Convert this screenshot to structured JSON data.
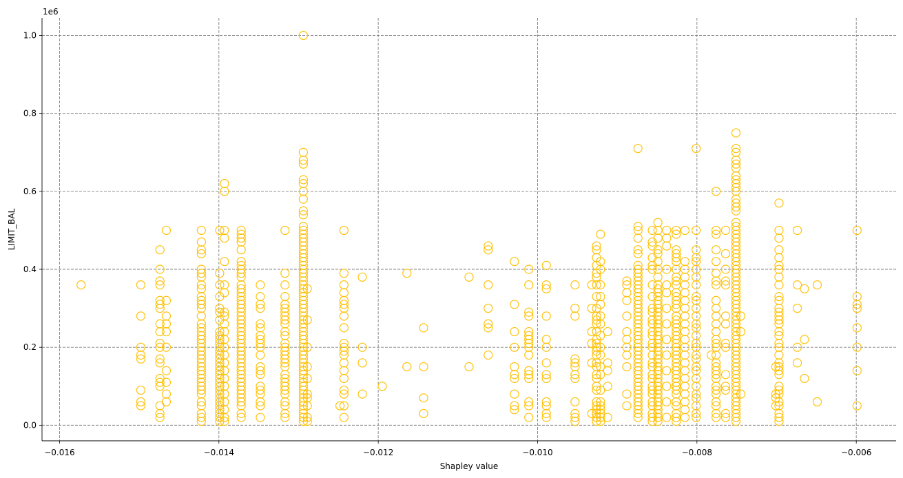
{
  "chart_data": {
    "type": "scatter",
    "title": "",
    "xlabel": "Shapley value",
    "ylabel": "LIMIT_BAL",
    "y_offset_label": "1e6",
    "xlim": [
      -0.01622,
      -0.0055
    ],
    "ylim": [
      -0.04,
      1.045
    ],
    "y_scale_multiplier": 1000000,
    "x_ticks": [
      -0.016,
      -0.014,
      -0.012,
      -0.01,
      -0.008,
      -0.006
    ],
    "x_tick_labels": [
      "−0.016",
      "−0.014",
      "−0.012",
      "−0.010",
      "−0.008",
      "−0.006"
    ],
    "y_ticks": [
      0.0,
      0.2,
      0.4,
      0.6,
      0.8,
      1.0
    ],
    "y_tick_labels": [
      "0.0",
      "0.2",
      "0.4",
      "0.6",
      "0.8",
      "1.0"
    ],
    "grid": true,
    "grid_style": "dashed",
    "marker": "open-circle",
    "marker_color": "#FFC20A",
    "columns": [
      {
        "x": -0.01573,
        "y": [
          0.36
        ]
      },
      {
        "x": -0.01498,
        "y": [
          0.05,
          0.06,
          0.09,
          0.17,
          0.18,
          0.2,
          0.28,
          0.36
        ]
      },
      {
        "x": -0.01474,
        "y": [
          0.02,
          0.03,
          0.05,
          0.1,
          0.11,
          0.12,
          0.16,
          0.17,
          0.2,
          0.21,
          0.24,
          0.26,
          0.3,
          0.31,
          0.32,
          0.36,
          0.37,
          0.4,
          0.45
        ]
      },
      {
        "x": -0.01466,
        "y": [
          0.06,
          0.08,
          0.11,
          0.14,
          0.2,
          0.24,
          0.26,
          0.28,
          0.32,
          0.5
        ]
      },
      {
        "x": -0.01422,
        "y": [
          0.01,
          0.02,
          0.03,
          0.05,
          0.06,
          0.08,
          0.09,
          0.1,
          0.11,
          0.12,
          0.13,
          0.14,
          0.15,
          0.16,
          0.17,
          0.18,
          0.19,
          0.2,
          0.21,
          0.22,
          0.23,
          0.24,
          0.25,
          0.26,
          0.28,
          0.3,
          0.31,
          0.32,
          0.33,
          0.35,
          0.36,
          0.38,
          0.39,
          0.4,
          0.44,
          0.45,
          0.47,
          0.5
        ]
      },
      {
        "x": -0.01399,
        "y": [
          0.01,
          0.02,
          0.03,
          0.04,
          0.05,
          0.06,
          0.07,
          0.08,
          0.09,
          0.1,
          0.11,
          0.12,
          0.13,
          0.14,
          0.15,
          0.16,
          0.17,
          0.18,
          0.19,
          0.2,
          0.21,
          0.22,
          0.23,
          0.24,
          0.27,
          0.29,
          0.3,
          0.33,
          0.36,
          0.39,
          0.5
        ]
      },
      {
        "x": -0.01393,
        "y": [
          0.01,
          0.02,
          0.04,
          0.06,
          0.08,
          0.1,
          0.12,
          0.14,
          0.16,
          0.18,
          0.2,
          0.22,
          0.24,
          0.26,
          0.28,
          0.29,
          0.34,
          0.36,
          0.42,
          0.48,
          0.5,
          0.6,
          0.62
        ]
      },
      {
        "x": -0.01372,
        "y": [
          0.02,
          0.03,
          0.05,
          0.06,
          0.07,
          0.08,
          0.09,
          0.1,
          0.11,
          0.12,
          0.13,
          0.14,
          0.15,
          0.16,
          0.17,
          0.18,
          0.19,
          0.2,
          0.21,
          0.22,
          0.23,
          0.24,
          0.25,
          0.26,
          0.27,
          0.28,
          0.29,
          0.3,
          0.31,
          0.32,
          0.33,
          0.34,
          0.35,
          0.36,
          0.38,
          0.39,
          0.4,
          0.41,
          0.42,
          0.45,
          0.47,
          0.48,
          0.49,
          0.5
        ]
      },
      {
        "x": -0.01348,
        "y": [
          0.02,
          0.05,
          0.06,
          0.08,
          0.09,
          0.1,
          0.13,
          0.14,
          0.15,
          0.18,
          0.2,
          0.21,
          0.22,
          0.23,
          0.25,
          0.26,
          0.3,
          0.31,
          0.33,
          0.36
        ]
      },
      {
        "x": -0.01317,
        "y": [
          0.02,
          0.03,
          0.05,
          0.06,
          0.08,
          0.09,
          0.1,
          0.11,
          0.12,
          0.13,
          0.15,
          0.16,
          0.17,
          0.18,
          0.19,
          0.2,
          0.21,
          0.23,
          0.24,
          0.26,
          0.27,
          0.28,
          0.29,
          0.3,
          0.31,
          0.33,
          0.36,
          0.39,
          0.5
        ]
      },
      {
        "x": -0.01294,
        "y": [
          0.01,
          0.02,
          0.03,
          0.04,
          0.05,
          0.06,
          0.07,
          0.08,
          0.09,
          0.1,
          0.11,
          0.12,
          0.13,
          0.14,
          0.15,
          0.16,
          0.17,
          0.18,
          0.19,
          0.2,
          0.21,
          0.22,
          0.23,
          0.24,
          0.25,
          0.26,
          0.27,
          0.28,
          0.29,
          0.3,
          0.31,
          0.32,
          0.33,
          0.34,
          0.35,
          0.36,
          0.37,
          0.38,
          0.39,
          0.4,
          0.41,
          0.42,
          0.43,
          0.44,
          0.45,
          0.46,
          0.47,
          0.48,
          0.49,
          0.5,
          0.51,
          0.54,
          0.55,
          0.58,
          0.6,
          0.62,
          0.63,
          0.67,
          0.68,
          0.7,
          1.0
        ]
      },
      {
        "x": -0.01289,
        "y": [
          0.01,
          0.02,
          0.05,
          0.07,
          0.08,
          0.12,
          0.15,
          0.2,
          0.27,
          0.35
        ]
      },
      {
        "x": -0.01248,
        "y": [
          0.05
        ]
      },
      {
        "x": -0.01243,
        "y": [
          0.02,
          0.05,
          0.08,
          0.09,
          0.12,
          0.14,
          0.16,
          0.18,
          0.19,
          0.2,
          0.21,
          0.25,
          0.28,
          0.3,
          0.31,
          0.32,
          0.34,
          0.36,
          0.39,
          0.5
        ]
      },
      {
        "x": -0.0122,
        "y": [
          0.08,
          0.16,
          0.2,
          0.38
        ]
      },
      {
        "x": -0.01195,
        "y": [
          0.1
        ]
      },
      {
        "x": -0.01164,
        "y": [
          0.15,
          0.39
        ]
      },
      {
        "x": -0.01143,
        "y": [
          0.03,
          0.07,
          0.15,
          0.25
        ]
      },
      {
        "x": -0.01086,
        "y": [
          0.15,
          0.38
        ]
      },
      {
        "x": -0.01062,
        "y": [
          0.18,
          0.25,
          0.26,
          0.3,
          0.36,
          0.45,
          0.46
        ]
      },
      {
        "x": -0.01029,
        "y": [
          0.04,
          0.05,
          0.08,
          0.12,
          0.13,
          0.15,
          0.2,
          0.24,
          0.31,
          0.42
        ]
      },
      {
        "x": -0.01011,
        "y": [
          0.02,
          0.05,
          0.06,
          0.12,
          0.13,
          0.14,
          0.18,
          0.2,
          0.21,
          0.22,
          0.23,
          0.24,
          0.28,
          0.29,
          0.36,
          0.4
        ]
      },
      {
        "x": -0.00989,
        "y": [
          0.02,
          0.03,
          0.05,
          0.06,
          0.12,
          0.13,
          0.16,
          0.2,
          0.22,
          0.28,
          0.35,
          0.36,
          0.41
        ]
      },
      {
        "x": -0.00953,
        "y": [
          0.01,
          0.02,
          0.03,
          0.06,
          0.12,
          0.13,
          0.15,
          0.16,
          0.17,
          0.28,
          0.3,
          0.36
        ]
      },
      {
        "x": -0.00932,
        "y": [
          0.03,
          0.16,
          0.21,
          0.24,
          0.3,
          0.36
        ]
      },
      {
        "x": -0.00926,
        "y": [
          0.01,
          0.02,
          0.03,
          0.04,
          0.05,
          0.06,
          0.09,
          0.1,
          0.12,
          0.13,
          0.15,
          0.16,
          0.18,
          0.19,
          0.2,
          0.21,
          0.22,
          0.24,
          0.26,
          0.27,
          0.28,
          0.3,
          0.33,
          0.36,
          0.38,
          0.39,
          0.41,
          0.43,
          0.45,
          0.46
        ]
      },
      {
        "x": -0.00921,
        "y": [
          0.01,
          0.02,
          0.03,
          0.04,
          0.05,
          0.06,
          0.09,
          0.13,
          0.15,
          0.18,
          0.2,
          0.23,
          0.26,
          0.28,
          0.31,
          0.33,
          0.36,
          0.4,
          0.42,
          0.49
        ]
      },
      {
        "x": -0.00912,
        "y": [
          0.02,
          0.1,
          0.14,
          0.16,
          0.24
        ]
      },
      {
        "x": -0.00888,
        "y": [
          0.05,
          0.08,
          0.15,
          0.18,
          0.2,
          0.22,
          0.24,
          0.28,
          0.32,
          0.34,
          0.36,
          0.37
        ]
      },
      {
        "x": -0.00874,
        "y": [
          0.02,
          0.03,
          0.04,
          0.05,
          0.06,
          0.07,
          0.08,
          0.09,
          0.1,
          0.11,
          0.12,
          0.13,
          0.14,
          0.15,
          0.16,
          0.17,
          0.18,
          0.19,
          0.2,
          0.21,
          0.22,
          0.23,
          0.24,
          0.25,
          0.26,
          0.27,
          0.28,
          0.29,
          0.3,
          0.31,
          0.32,
          0.33,
          0.34,
          0.35,
          0.36,
          0.37,
          0.38,
          0.39,
          0.4,
          0.41,
          0.44,
          0.45,
          0.48,
          0.5,
          0.51,
          0.71
        ]
      },
      {
        "x": -0.00856,
        "y": [
          0.01,
          0.02,
          0.03,
          0.05,
          0.06,
          0.08,
          0.09,
          0.1,
          0.12,
          0.13,
          0.15,
          0.16,
          0.18,
          0.2,
          0.21,
          0.23,
          0.24,
          0.26,
          0.27,
          0.29,
          0.3,
          0.33,
          0.36,
          0.4,
          0.41,
          0.43,
          0.46,
          0.47,
          0.5
        ]
      },
      {
        "x": -0.00849,
        "y": [
          0.01,
          0.02,
          0.03,
          0.04,
          0.05,
          0.06,
          0.07,
          0.08,
          0.09,
          0.1,
          0.11,
          0.12,
          0.13,
          0.14,
          0.15,
          0.16,
          0.17,
          0.18,
          0.19,
          0.2,
          0.21,
          0.22,
          0.23,
          0.24,
          0.25,
          0.26,
          0.27,
          0.28,
          0.29,
          0.3,
          0.31,
          0.32,
          0.33,
          0.34,
          0.35,
          0.36,
          0.38,
          0.4,
          0.42,
          0.44,
          0.45,
          0.48,
          0.5,
          0.52
        ]
      },
      {
        "x": -0.00838,
        "y": [
          0.02,
          0.06,
          0.1,
          0.14,
          0.18,
          0.22,
          0.26,
          0.3,
          0.34,
          0.36,
          0.4,
          0.46,
          0.48,
          0.5
        ]
      },
      {
        "x": -0.00826,
        "y": [
          0.01,
          0.02,
          0.03,
          0.05,
          0.06,
          0.08,
          0.09,
          0.1,
          0.11,
          0.12,
          0.13,
          0.14,
          0.15,
          0.16,
          0.17,
          0.18,
          0.19,
          0.2,
          0.21,
          0.22,
          0.23,
          0.24,
          0.25,
          0.26,
          0.27,
          0.28,
          0.3,
          0.31,
          0.32,
          0.33,
          0.34,
          0.36,
          0.37,
          0.38,
          0.4,
          0.42,
          0.43,
          0.44,
          0.45,
          0.49,
          0.5
        ]
      },
      {
        "x": -0.00815,
        "y": [
          0.02,
          0.04,
          0.06,
          0.08,
          0.1,
          0.12,
          0.14,
          0.16,
          0.18,
          0.2,
          0.22,
          0.24,
          0.26,
          0.28,
          0.3,
          0.32,
          0.34,
          0.36,
          0.38,
          0.4,
          0.42,
          0.5
        ]
      },
      {
        "x": -0.00801,
        "y": [
          0.02,
          0.03,
          0.05,
          0.07,
          0.08,
          0.1,
          0.12,
          0.14,
          0.15,
          0.17,
          0.18,
          0.2,
          0.21,
          0.23,
          0.25,
          0.26,
          0.28,
          0.3,
          0.32,
          0.33,
          0.36,
          0.38,
          0.4,
          0.42,
          0.43,
          0.45,
          0.5,
          0.71
        ]
      },
      {
        "x": -0.00782,
        "y": [
          0.18
        ]
      },
      {
        "x": -0.00776,
        "y": [
          0.02,
          0.03,
          0.05,
          0.06,
          0.08,
          0.09,
          0.1,
          0.12,
          0.13,
          0.14,
          0.15,
          0.16,
          0.18,
          0.2,
          0.21,
          0.22,
          0.24,
          0.26,
          0.28,
          0.3,
          0.32,
          0.36,
          0.37,
          0.39,
          0.42,
          0.45,
          0.49,
          0.5,
          0.6
        ]
      },
      {
        "x": -0.00764,
        "y": [
          0.02,
          0.03,
          0.09,
          0.1,
          0.13,
          0.2,
          0.21,
          0.26,
          0.28,
          0.36,
          0.37,
          0.4,
          0.44,
          0.5
        ]
      },
      {
        "x": -0.00751,
        "y": [
          0.01,
          0.02,
          0.03,
          0.04,
          0.05,
          0.06,
          0.07,
          0.08,
          0.09,
          0.1,
          0.11,
          0.12,
          0.13,
          0.14,
          0.15,
          0.16,
          0.17,
          0.18,
          0.19,
          0.2,
          0.21,
          0.22,
          0.23,
          0.24,
          0.25,
          0.26,
          0.27,
          0.28,
          0.29,
          0.3,
          0.31,
          0.32,
          0.33,
          0.34,
          0.35,
          0.36,
          0.37,
          0.38,
          0.39,
          0.4,
          0.41,
          0.42,
          0.43,
          0.44,
          0.45,
          0.46,
          0.47,
          0.48,
          0.49,
          0.5,
          0.51,
          0.52,
          0.55,
          0.56,
          0.57,
          0.58,
          0.6,
          0.61,
          0.62,
          0.63,
          0.64,
          0.66,
          0.67,
          0.68,
          0.7,
          0.71,
          0.75
        ]
      },
      {
        "x": -0.00745,
        "y": [
          0.08,
          0.24,
          0.28
        ]
      },
      {
        "x": -0.00701,
        "y": [
          0.05,
          0.07,
          0.08,
          0.15
        ]
      },
      {
        "x": -0.00697,
        "y": [
          0.01,
          0.02,
          0.03,
          0.05,
          0.06,
          0.08,
          0.09,
          0.1,
          0.13,
          0.14,
          0.15,
          0.16,
          0.18,
          0.2,
          0.21,
          0.23,
          0.24,
          0.26,
          0.27,
          0.28,
          0.29,
          0.3,
          0.32,
          0.33,
          0.36,
          0.38,
          0.4,
          0.41,
          0.43,
          0.45,
          0.48,
          0.5,
          0.57
        ]
      },
      {
        "x": -0.00674,
        "y": [
          0.16,
          0.2,
          0.3,
          0.36,
          0.5
        ]
      },
      {
        "x": -0.00665,
        "y": [
          0.12,
          0.22,
          0.35
        ]
      },
      {
        "x": -0.00649,
        "y": [
          0.06,
          0.36
        ]
      },
      {
        "x": -0.00599,
        "y": [
          0.05,
          0.14,
          0.2,
          0.25,
          0.3,
          0.31,
          0.33,
          0.5
        ]
      }
    ]
  }
}
